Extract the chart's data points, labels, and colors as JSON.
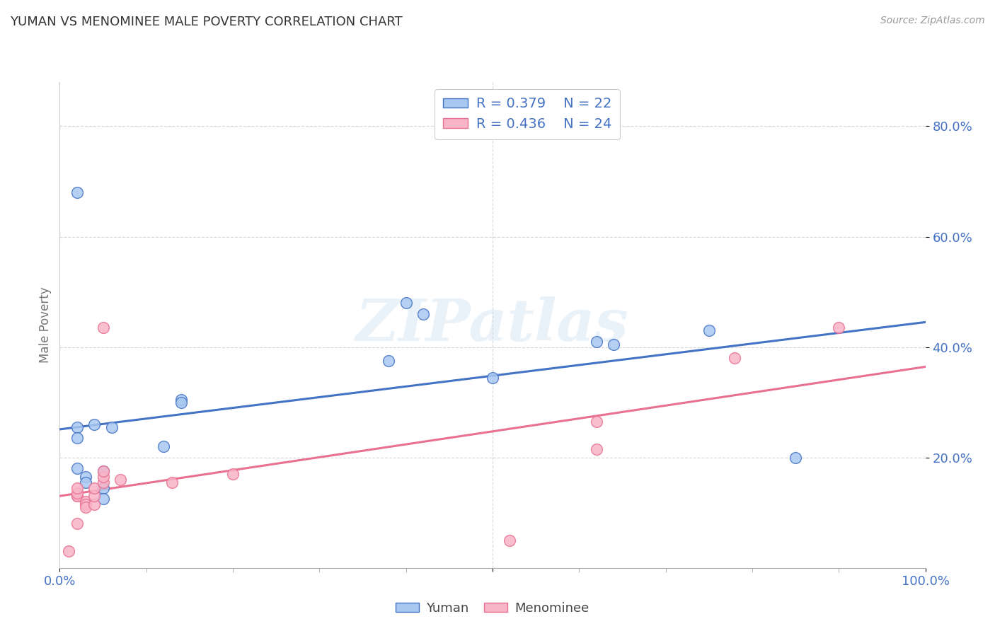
{
  "title": "YUMAN VS MENOMINEE MALE POVERTY CORRELATION CHART",
  "source_text": "Source: ZipAtlas.com",
  "ylabel": "Male Poverty",
  "watermark": "ZIPatlas",
  "yuman_points": [
    [
      0.02,
      0.68
    ],
    [
      0.02,
      0.255
    ],
    [
      0.02,
      0.235
    ],
    [
      0.02,
      0.18
    ],
    [
      0.03,
      0.165
    ],
    [
      0.03,
      0.155
    ],
    [
      0.04,
      0.26
    ],
    [
      0.05,
      0.175
    ],
    [
      0.05,
      0.145
    ],
    [
      0.05,
      0.125
    ],
    [
      0.06,
      0.255
    ],
    [
      0.12,
      0.22
    ],
    [
      0.14,
      0.305
    ],
    [
      0.14,
      0.3
    ],
    [
      0.38,
      0.375
    ],
    [
      0.4,
      0.48
    ],
    [
      0.42,
      0.46
    ],
    [
      0.5,
      0.345
    ],
    [
      0.62,
      0.41
    ],
    [
      0.64,
      0.405
    ],
    [
      0.75,
      0.43
    ],
    [
      0.85,
      0.2
    ]
  ],
  "menominee_points": [
    [
      0.01,
      0.03
    ],
    [
      0.02,
      0.08
    ],
    [
      0.02,
      0.13
    ],
    [
      0.02,
      0.13
    ],
    [
      0.02,
      0.135
    ],
    [
      0.02,
      0.145
    ],
    [
      0.03,
      0.12
    ],
    [
      0.03,
      0.115
    ],
    [
      0.03,
      0.11
    ],
    [
      0.04,
      0.115
    ],
    [
      0.04,
      0.13
    ],
    [
      0.04,
      0.145
    ],
    [
      0.05,
      0.155
    ],
    [
      0.05,
      0.165
    ],
    [
      0.05,
      0.175
    ],
    [
      0.05,
      0.435
    ],
    [
      0.07,
      0.16
    ],
    [
      0.13,
      0.155
    ],
    [
      0.2,
      0.17
    ],
    [
      0.52,
      0.05
    ],
    [
      0.62,
      0.265
    ],
    [
      0.62,
      0.215
    ],
    [
      0.78,
      0.38
    ],
    [
      0.9,
      0.435
    ]
  ],
  "yuman_color": "#A8C8F0",
  "menominee_color": "#F8B4C8",
  "yuman_edge_color": "#4472C4",
  "menominee_edge_color": "#E87090",
  "yuman_line_color": "#4472C4",
  "menominee_line_color": "#E87090",
  "yuman_R": "0.379",
  "yuman_N": "22",
  "menominee_R": "0.436",
  "menominee_N": "24",
  "xlim": [
    0.0,
    1.0
  ],
  "ylim": [
    0.0,
    0.88
  ],
  "ytick_vals": [
    0.2,
    0.4,
    0.6,
    0.8
  ],
  "ytick_labels": [
    "20.0%",
    "40.0%",
    "60.0%",
    "80.0%"
  ],
  "xtick_vals": [
    0.0,
    0.5,
    1.0
  ],
  "xtick_labels": [
    "0.0%",
    "",
    "100.0%"
  ],
  "grid_color": "#CCCCCC",
  "background_color": "#FFFFFF",
  "title_color": "#333333",
  "right_label_color": "#4472C4",
  "axis_label_color": "#777777",
  "source_color": "#999999",
  "legend_label_color": "#4472C4"
}
